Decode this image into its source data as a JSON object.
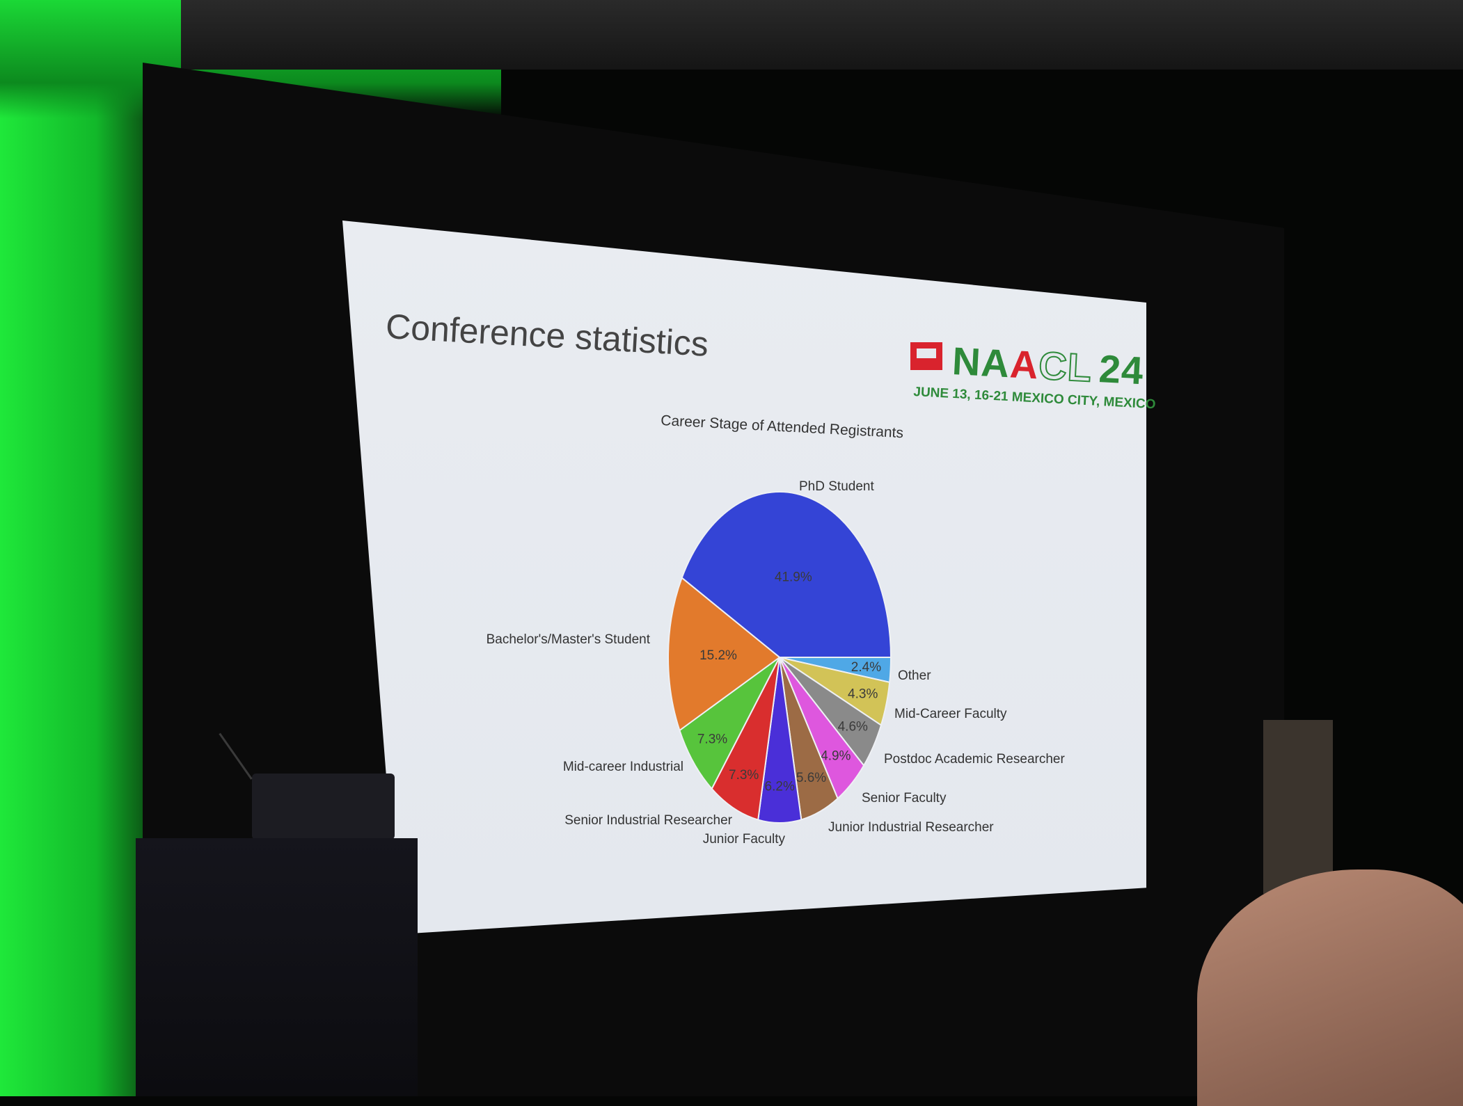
{
  "slide": {
    "title": "Conference statistics",
    "logo_letters": [
      "N",
      "A",
      "A",
      "C",
      "L"
    ],
    "logo_year": "24",
    "logo_subtitle": "JUNE 13, 16-21 MEXICO CITY, MEXICO"
  },
  "chart_data": {
    "type": "pie",
    "title": "Career Stage of Attended Registrants",
    "slices": [
      {
        "label": "PhD Student",
        "value": 41.9,
        "value_text": "41.9%",
        "color": "#3444d6"
      },
      {
        "label": "Other",
        "value": 2.4,
        "value_text": "2.4%",
        "color": "#4fa8e6"
      },
      {
        "label": "Mid-Career Faculty",
        "value": 4.3,
        "value_text": "4.3%",
        "color": "#d2c357"
      },
      {
        "label": "Postdoc Academic Researcher",
        "value": 4.6,
        "value_text": "4.6%",
        "color": "#8a8a8a"
      },
      {
        "label": "Senior Faculty",
        "value": 4.9,
        "value_text": "4.9%",
        "color": "#de57de"
      },
      {
        "label": "Junior Industrial Researcher",
        "value": 5.6,
        "value_text": "5.6%",
        "color": "#9c6b45"
      },
      {
        "label": "Junior Faculty",
        "value": 6.2,
        "value_text": "6.2%",
        "color": "#4a2fd8"
      },
      {
        "label": "Senior Industrial Researcher",
        "value": 7.3,
        "value_text": "7.3%",
        "color": "#d92e2e"
      },
      {
        "label": "Mid-career Industrial",
        "value": 7.3,
        "value_text": "7.3%",
        "color": "#57c43c"
      },
      {
        "label": "Bachelor's/Master's Student",
        "value": 15.2,
        "value_text": "15.2%",
        "color": "#e27a2c"
      }
    ]
  }
}
